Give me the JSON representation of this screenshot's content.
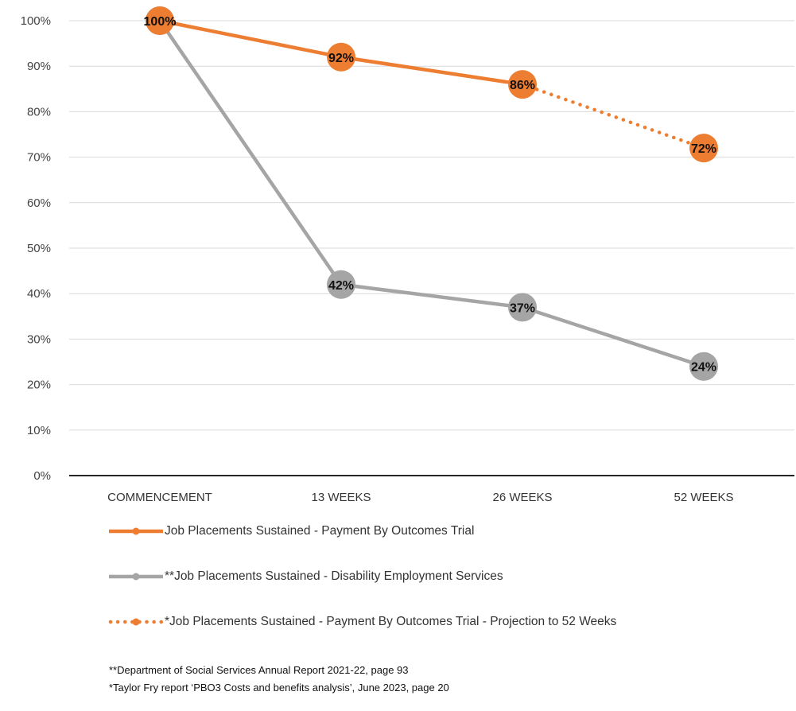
{
  "chart_data": {
    "type": "line",
    "title": "",
    "xlabel": "",
    "ylabel": "",
    "categories": [
      "COMMENCEMENT",
      "13 WEEKS",
      "26 WEEKS",
      "52 WEEKS"
    ],
    "ylim": [
      0,
      100
    ],
    "yticks": [
      "0%",
      "10%",
      "20%",
      "30%",
      "40%",
      "50%",
      "60%",
      "70%",
      "80%",
      "90%",
      "100%"
    ],
    "grid": true,
    "legend_position": "bottom",
    "series": [
      {
        "name": "Job Placements Sustained - Payment By Outcomes Trial",
        "color": "#ED7D31",
        "style": "solid",
        "values": [
          100,
          92,
          86,
          null
        ],
        "labels": [
          "100%",
          "92%",
          "86%",
          ""
        ]
      },
      {
        "name": "**Job Placements Sustained - Disability Employment Services",
        "color": "#A5A5A5",
        "style": "solid",
        "values": [
          100,
          42,
          37,
          24
        ],
        "labels": [
          "100%",
          "42%",
          "37%",
          "24%"
        ]
      },
      {
        "name": "*Job Placements Sustained - Payment By Outcomes Trial - Projection to 52 Weeks",
        "color": "#ED7D31",
        "style": "dotted",
        "values": [
          null,
          null,
          86,
          72
        ],
        "labels": [
          "",
          "",
          "",
          "72%"
        ]
      }
    ]
  },
  "footnotes": [
    "**Department of Social Services Annual Report 2021-22, page 93",
    "*Taylor Fry report ‘PBO3 Costs and benefits analysis’, June 2023, page 20"
  ]
}
